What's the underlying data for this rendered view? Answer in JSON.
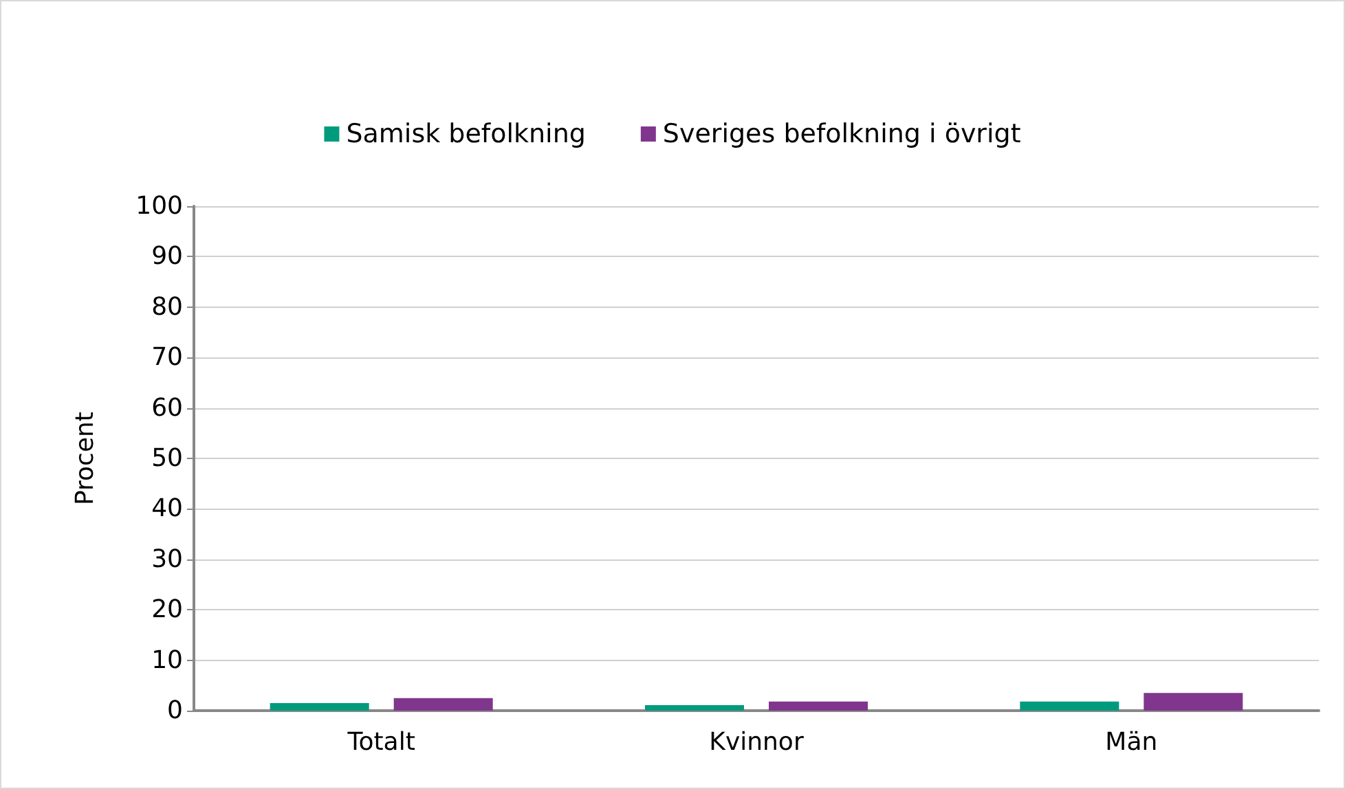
{
  "chart_data": {
    "type": "bar",
    "ylabel": "Procent",
    "categories": [
      "Totalt",
      "Kvinnor",
      "Män"
    ],
    "series": [
      {
        "name": "Samisk befolkning",
        "color": "#009b7d",
        "values": [
          1.5,
          1.1,
          1.8
        ]
      },
      {
        "name": "Sveriges befolkning i övrigt",
        "color": "#80368c",
        "values": [
          2.5,
          1.8,
          3.5
        ]
      }
    ],
    "ylim": [
      0,
      100
    ],
    "yticks": [
      0,
      10,
      20,
      30,
      40,
      50,
      60,
      70,
      80,
      90,
      100
    ],
    "grid": "y",
    "legend": "top"
  }
}
